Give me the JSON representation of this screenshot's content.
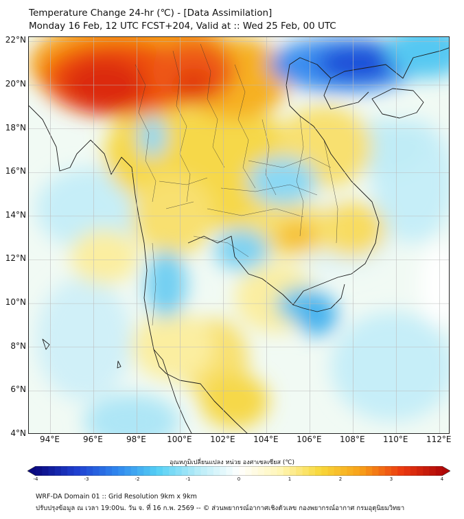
{
  "title_line1": "Temperature Change 24-hr (℃) - [Data Assimilation]",
  "title_line2": "Monday 16 Feb, 12 UTC FCST+204, Valid at :: Wed 25 Feb, 00 UTC",
  "lat_labels": [
    "22°N",
    "20°N",
    "18°N",
    "16°N",
    "14°N",
    "12°N",
    "10°N",
    "8°N",
    "6°N",
    "4°N"
  ],
  "lon_labels": [
    "94°E",
    "96°E",
    "98°E",
    "100°E",
    "102°E",
    "104°E",
    "106°E",
    "108°E",
    "110°E",
    "112°E"
  ],
  "lat_values": [
    22,
    20,
    18,
    16,
    14,
    12,
    10,
    8,
    6,
    4
  ],
  "lon_values": [
    94,
    96,
    98,
    100,
    102,
    104,
    106,
    108,
    110,
    112
  ],
  "extent": {
    "lon_min": 93,
    "lon_max": 112.5,
    "lat_min": 4,
    "lat_max": 22.2
  },
  "colorbar_title": "อุณหภูมิเปลี่ยนแปลง หน่วย องศาเซลเซียส (℃)",
  "colorbar_ticks": [
    "-4",
    "-3",
    "-2",
    "-1",
    "0",
    "1",
    "2",
    "3",
    "4"
  ],
  "colorbar_range": [
    -4,
    4
  ],
  "colors": {
    "scale": [
      "#0a0a80",
      "#1f3fd0",
      "#2f86ee",
      "#55d0f5",
      "#b8ecf8",
      "#ffffff",
      "#fff6b8",
      "#f8d83a",
      "#f8a018",
      "#ec3a10",
      "#b00808"
    ]
  },
  "footer_line1": "WRF-DA Domain 01 :: Grid Resolution 9km x 9km",
  "footer_line2": "ปรับปรุงข้อมูล ณ เวลา 19:00น. วัน จ. ที่ 16 ก.พ. 2569 -- © ส่วนพยากรณ์อากาศเชิงตัวเลข กองพยากรณ์อากาศ กรมอุตุนิยมวิทยา"
}
